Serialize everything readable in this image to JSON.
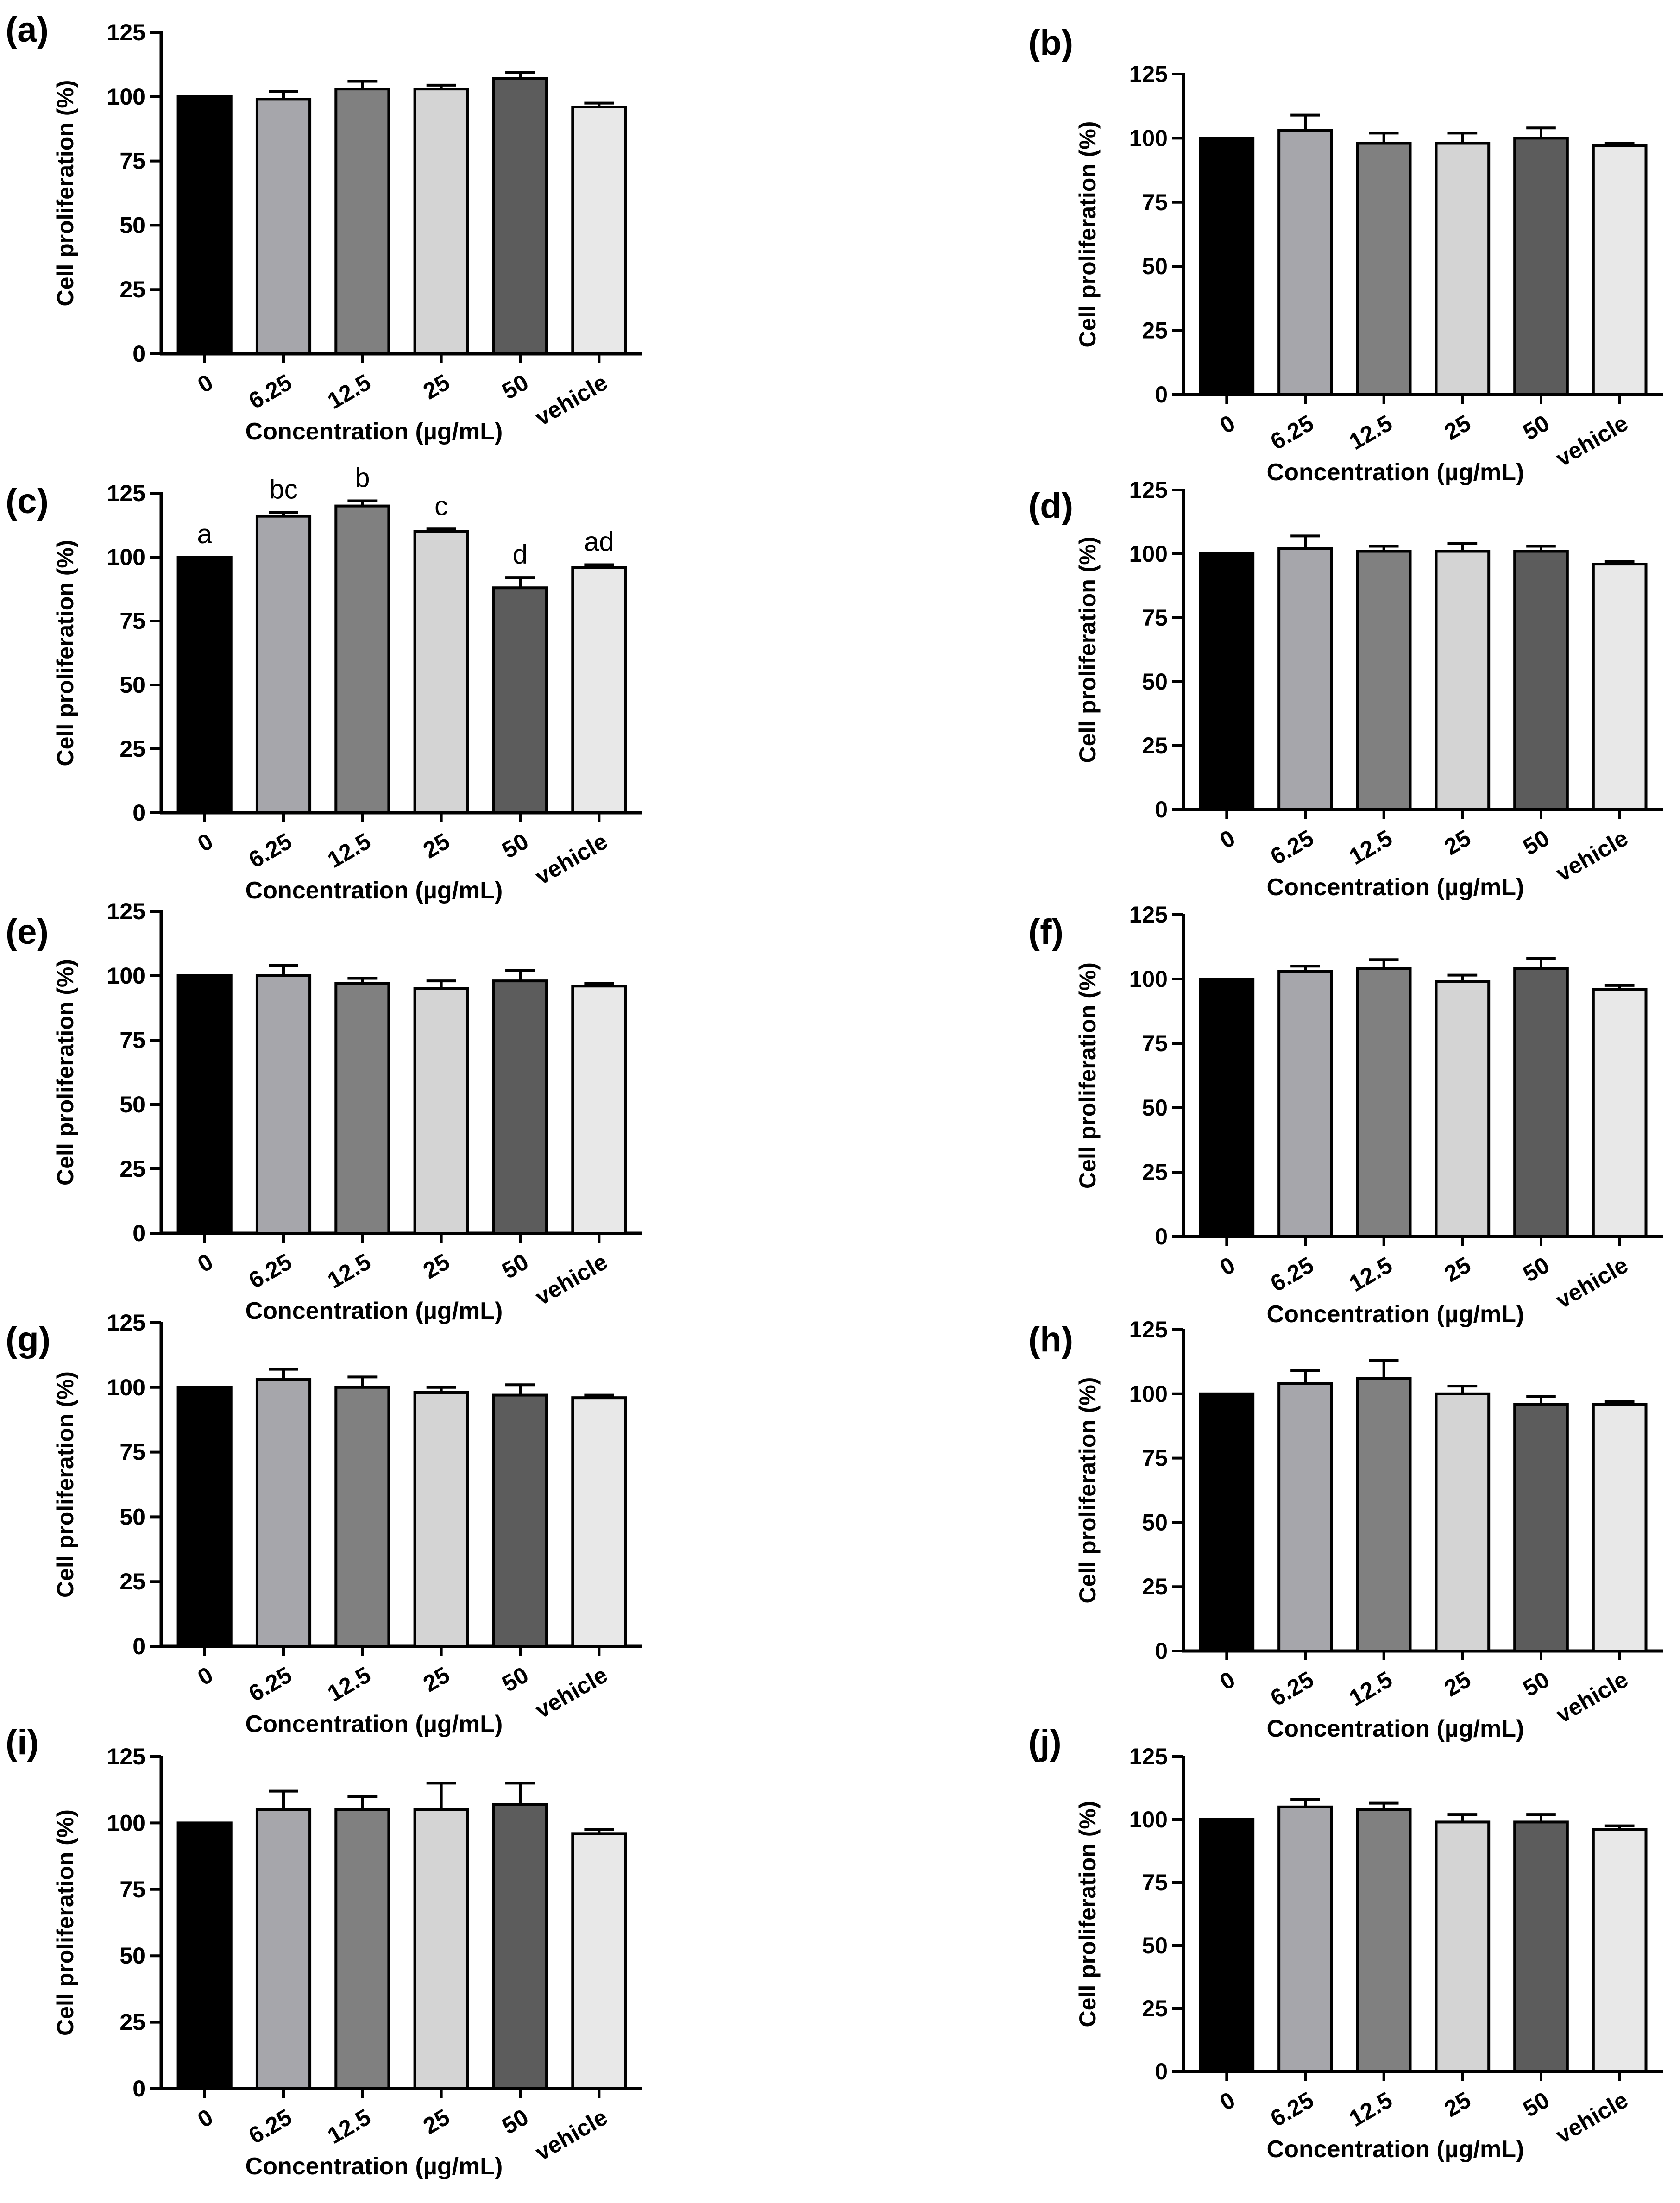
{
  "figure": {
    "panels": [
      {
        "id": "a",
        "label": "(a)"
      },
      {
        "id": "b",
        "label": "(b)"
      },
      {
        "id": "c",
        "label": "(c)"
      },
      {
        "id": "d",
        "label": "(d)"
      },
      {
        "id": "e",
        "label": "(e)"
      },
      {
        "id": "f",
        "label": "(f)"
      },
      {
        "id": "g",
        "label": "(g)"
      },
      {
        "id": "h",
        "label": "(h)"
      },
      {
        "id": "i",
        "label": "(i)"
      },
      {
        "id": "j",
        "label": "(j)"
      }
    ]
  },
  "chart_data": [
    {
      "panel": "(a)",
      "type": "bar",
      "categories": [
        "0",
        "6.25",
        "12.5",
        "25",
        "50",
        "vehicle"
      ],
      "values": [
        100,
        99,
        103,
        103,
        107,
        96
      ],
      "errors": [
        0,
        3,
        3,
        1.5,
        2.5,
        1.5
      ],
      "bar_colors": [
        "#000000",
        "#a6a6ab",
        "#808080",
        "#d4d4d4",
        "#5c5c5c",
        "#e8e8e8"
      ],
      "title": "",
      "xlabel": "Concentration (µg/mL)",
      "ylabel": "Cell proliferation (%)",
      "ylim": [
        0,
        125
      ],
      "yticks": [
        0,
        25,
        50,
        75,
        100,
        125
      ],
      "significance_letters": []
    },
    {
      "panel": "(b)",
      "type": "bar",
      "categories": [
        "0",
        "6.25",
        "12.5",
        "25",
        "50",
        "vehicle"
      ],
      "values": [
        100,
        103,
        98,
        98,
        100,
        97
      ],
      "errors": [
        0,
        6,
        4,
        4,
        4,
        1
      ],
      "bar_colors": [
        "#000000",
        "#a6a6ab",
        "#808080",
        "#d4d4d4",
        "#5c5c5c",
        "#e8e8e8"
      ],
      "title": "",
      "xlabel": "Concentration (µg/mL)",
      "ylabel": "Cell proliferation (%)",
      "ylim": [
        0,
        125
      ],
      "yticks": [
        0,
        25,
        50,
        75,
        100,
        125
      ],
      "significance_letters": []
    },
    {
      "panel": "(c)",
      "type": "bar",
      "categories": [
        "0",
        "6.25",
        "12.5",
        "25",
        "50",
        "vehicle"
      ],
      "values": [
        100,
        116,
        120,
        110,
        88,
        96
      ],
      "errors": [
        0,
        1.5,
        2,
        1,
        4,
        1
      ],
      "bar_colors": [
        "#000000",
        "#a6a6ab",
        "#808080",
        "#d4d4d4",
        "#5c5c5c",
        "#e8e8e8"
      ],
      "title": "",
      "xlabel": "Concentration (µg/mL)",
      "ylabel": "Cell proliferation (%)",
      "ylim": [
        0,
        125
      ],
      "yticks": [
        0,
        25,
        50,
        75,
        100,
        125
      ],
      "significance_letters": [
        "a",
        "bc",
        "b",
        "c",
        "d",
        "ad"
      ]
    },
    {
      "panel": "(d)",
      "type": "bar",
      "categories": [
        "0",
        "6.25",
        "12.5",
        "25",
        "50",
        "vehicle"
      ],
      "values": [
        100,
        102,
        101,
        101,
        101,
        96
      ],
      "errors": [
        0,
        5,
        2,
        3,
        2,
        1
      ],
      "bar_colors": [
        "#000000",
        "#a6a6ab",
        "#808080",
        "#d4d4d4",
        "#5c5c5c",
        "#e8e8e8"
      ],
      "title": "",
      "xlabel": "Concentration (µg/mL)",
      "ylabel": "Cell proliferation (%)",
      "ylim": [
        0,
        125
      ],
      "yticks": [
        0,
        25,
        50,
        75,
        100,
        125
      ],
      "significance_letters": []
    },
    {
      "panel": "(e)",
      "type": "bar",
      "categories": [
        "0",
        "6.25",
        "12.5",
        "25",
        "50",
        "vehicle"
      ],
      "values": [
        100,
        100,
        97,
        95,
        98,
        96
      ],
      "errors": [
        0,
        4,
        2,
        3,
        4,
        1
      ],
      "bar_colors": [
        "#000000",
        "#a6a6ab",
        "#808080",
        "#d4d4d4",
        "#5c5c5c",
        "#e8e8e8"
      ],
      "title": "",
      "xlabel": "Concentration (µg/mL)",
      "ylabel": "Cell proliferation (%)",
      "ylim": [
        0,
        125
      ],
      "yticks": [
        0,
        25,
        50,
        75,
        100,
        125
      ],
      "significance_letters": []
    },
    {
      "panel": "(f)",
      "type": "bar",
      "categories": [
        "0",
        "6.25",
        "12.5",
        "25",
        "50",
        "vehicle"
      ],
      "values": [
        100,
        103,
        104,
        99,
        104,
        96
      ],
      "errors": [
        0,
        2,
        3.5,
        2.5,
        4,
        1.5
      ],
      "bar_colors": [
        "#000000",
        "#a6a6ab",
        "#808080",
        "#d4d4d4",
        "#5c5c5c",
        "#e8e8e8"
      ],
      "title": "",
      "xlabel": "Concentration (µg/mL)",
      "ylabel": "Cell proliferation (%)",
      "ylim": [
        0,
        125
      ],
      "yticks": [
        0,
        25,
        50,
        75,
        100,
        125
      ],
      "significance_letters": []
    },
    {
      "panel": "(g)",
      "type": "bar",
      "categories": [
        "0",
        "6.25",
        "12.5",
        "25",
        "50",
        "vehicle"
      ],
      "values": [
        100,
        103,
        100,
        98,
        97,
        96
      ],
      "errors": [
        0,
        4,
        4,
        2,
        4,
        1
      ],
      "bar_colors": [
        "#000000",
        "#a6a6ab",
        "#808080",
        "#d4d4d4",
        "#5c5c5c",
        "#e8e8e8"
      ],
      "title": "",
      "xlabel": "Concentration (µg/mL)",
      "ylabel": "Cell proliferation (%)",
      "ylim": [
        0,
        125
      ],
      "yticks": [
        0,
        25,
        50,
        75,
        100,
        125
      ],
      "significance_letters": []
    },
    {
      "panel": "(h)",
      "type": "bar",
      "categories": [
        "0",
        "6.25",
        "12.5",
        "25",
        "50",
        "vehicle"
      ],
      "values": [
        100,
        104,
        106,
        100,
        96,
        96
      ],
      "errors": [
        0,
        5,
        7,
        3,
        3,
        1
      ],
      "bar_colors": [
        "#000000",
        "#a6a6ab",
        "#808080",
        "#d4d4d4",
        "#5c5c5c",
        "#e8e8e8"
      ],
      "title": "",
      "xlabel": "Concentration (µg/mL)",
      "ylabel": "Cell proliferation (%)",
      "ylim": [
        0,
        125
      ],
      "yticks": [
        0,
        25,
        50,
        75,
        100,
        125
      ],
      "significance_letters": []
    },
    {
      "panel": "(i)",
      "type": "bar",
      "categories": [
        "0",
        "6.25",
        "12.5",
        "25",
        "50",
        "vehicle"
      ],
      "values": [
        100,
        105,
        105,
        105,
        107,
        96
      ],
      "errors": [
        0,
        7,
        5,
        10,
        8,
        1.5
      ],
      "bar_colors": [
        "#000000",
        "#a6a6ab",
        "#808080",
        "#d4d4d4",
        "#5c5c5c",
        "#e8e8e8"
      ],
      "title": "",
      "xlabel": "Concentration (µg/mL)",
      "ylabel": "Cell proliferation (%)",
      "ylim": [
        0,
        125
      ],
      "yticks": [
        0,
        25,
        50,
        75,
        100,
        125
      ],
      "significance_letters": []
    },
    {
      "panel": "(j)",
      "type": "bar",
      "categories": [
        "0",
        "6.25",
        "12.5",
        "25",
        "50",
        "vehicle"
      ],
      "values": [
        100,
        105,
        104,
        99,
        99,
        96
      ],
      "errors": [
        0,
        3,
        2.5,
        3,
        3,
        1.5
      ],
      "bar_colors": [
        "#000000",
        "#a6a6ab",
        "#808080",
        "#d4d4d4",
        "#5c5c5c",
        "#e8e8e8"
      ],
      "title": "",
      "xlabel": "Concentration (µg/mL)",
      "ylabel": "Cell proliferation (%)",
      "ylim": [
        0,
        125
      ],
      "yticks": [
        0,
        25,
        50,
        75,
        100,
        125
      ],
      "significance_letters": []
    }
  ]
}
